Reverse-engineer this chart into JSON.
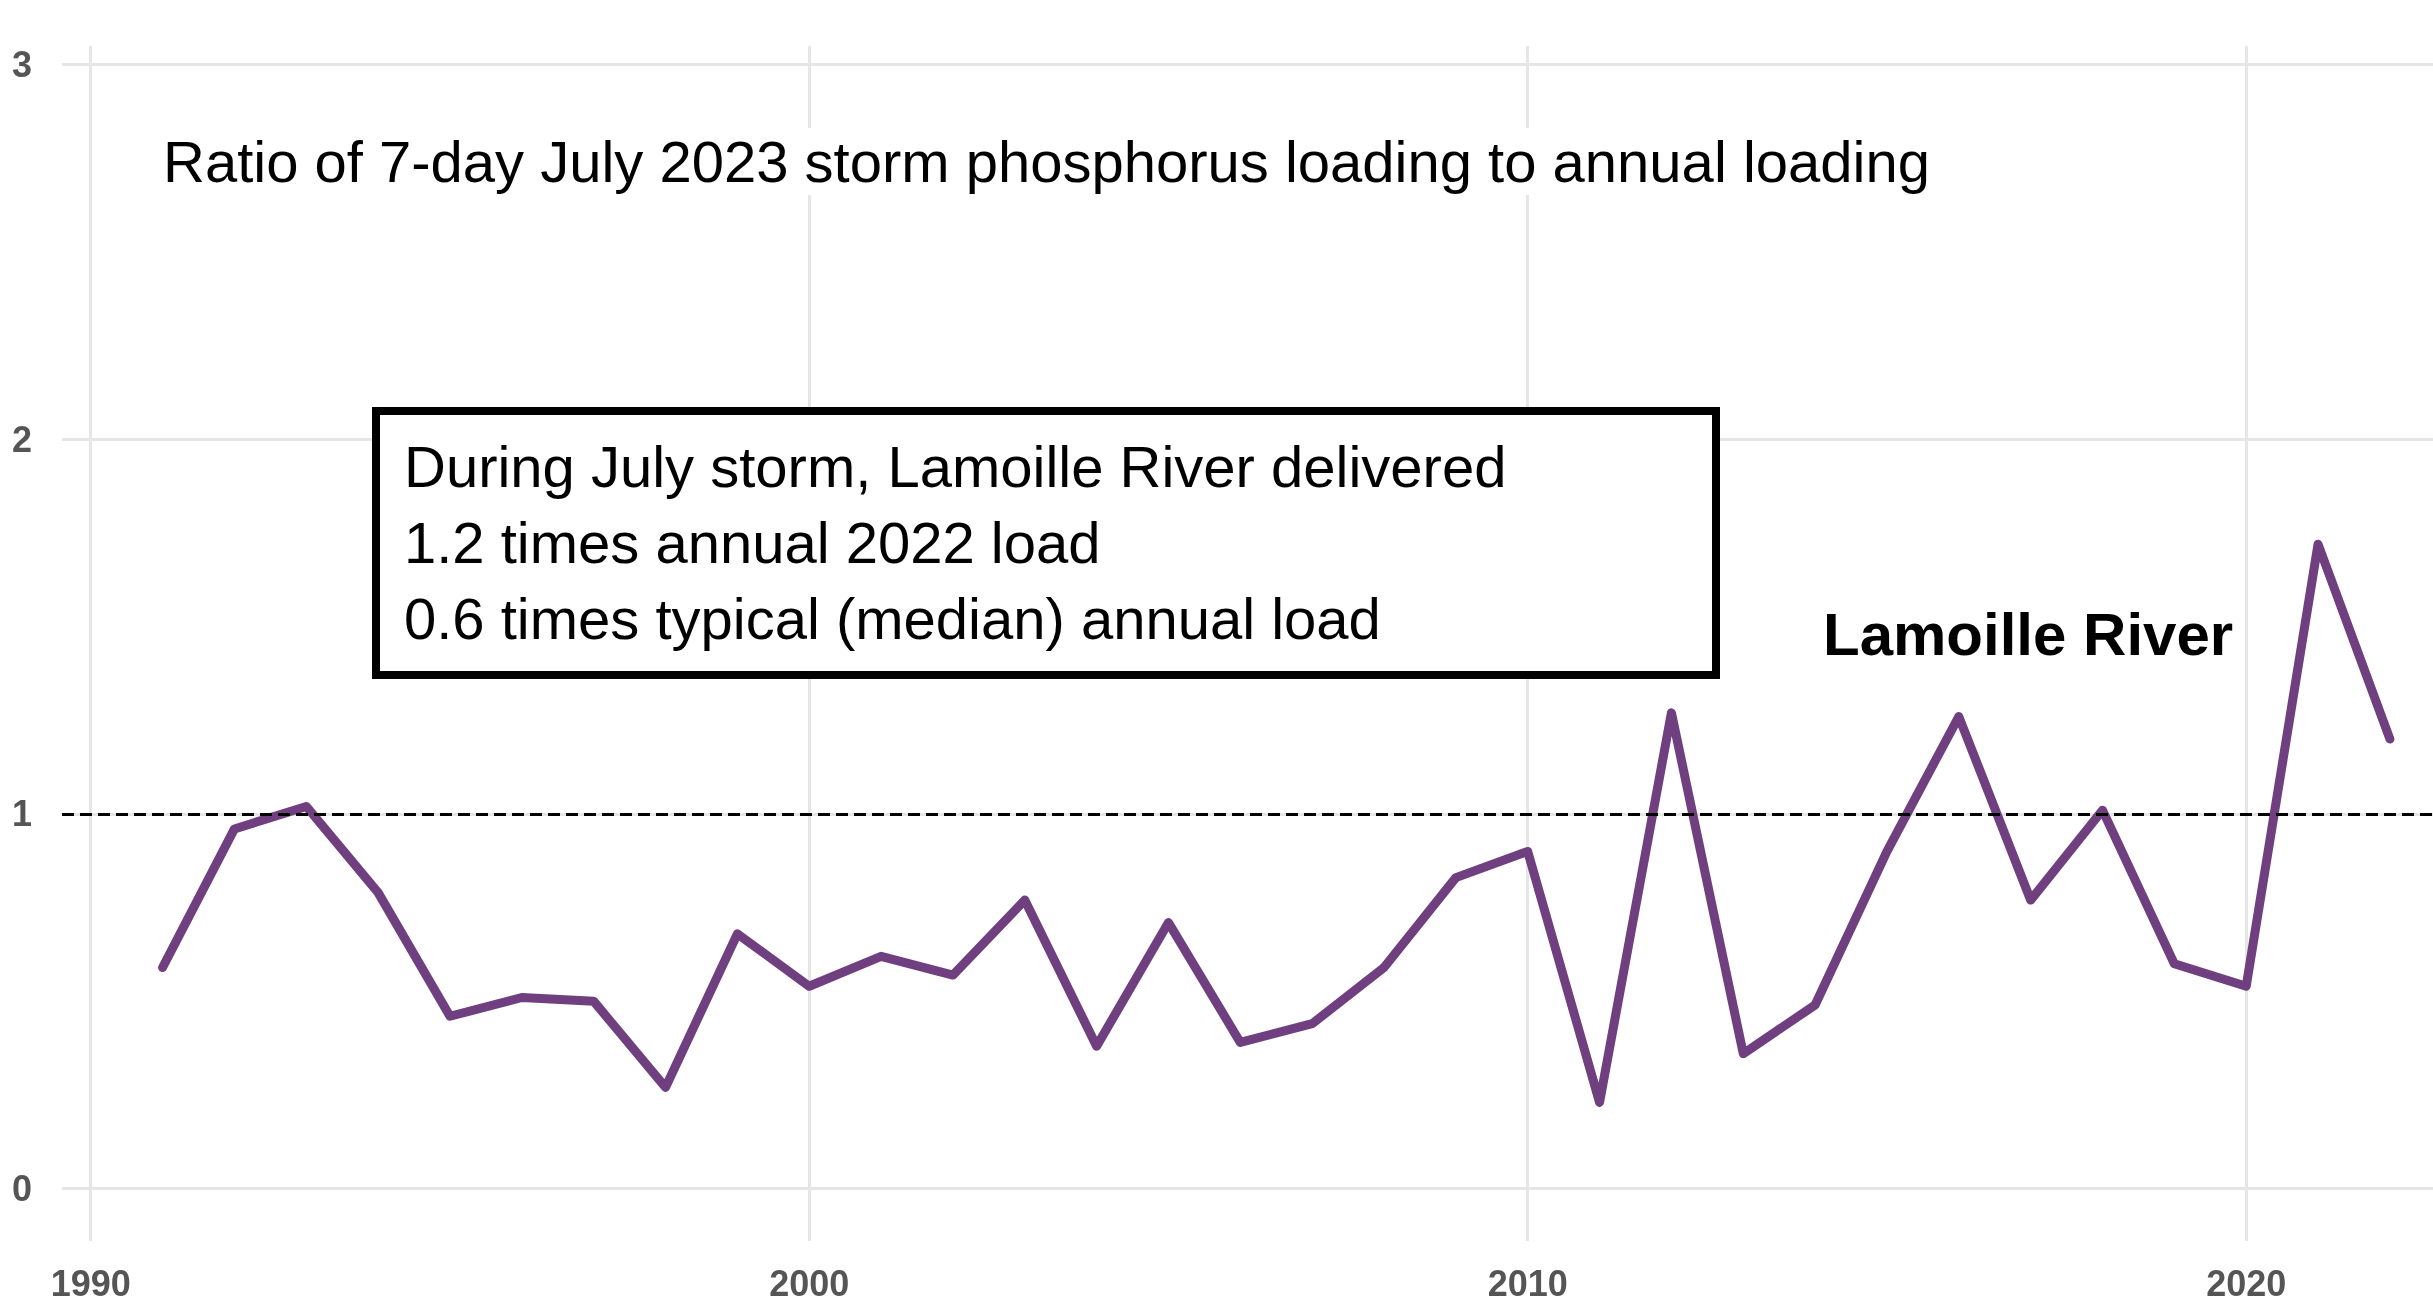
{
  "chart_data": {
    "type": "line",
    "title": "Ratio of 7-day July 2023 storm phosphorus loading to annual loading",
    "annotations": [
      "During July storm, Lamoille River delivered",
      "1.2 times annual 2022 load",
      "0.6 times typical (median) annual load"
    ],
    "x": [
      1991,
      1992,
      1993,
      1994,
      1995,
      1996,
      1997,
      1998,
      1999,
      2000,
      2001,
      2002,
      2003,
      2004,
      2005,
      2006,
      2007,
      2008,
      2009,
      2010,
      2011,
      2012,
      2013,
      2014,
      2015,
      2016,
      2017,
      2018,
      2019,
      2020,
      2021,
      2022
    ],
    "series": [
      {
        "name": "Lamoille River",
        "color": "#6f3f7f",
        "values": [
          0.59,
          0.96,
          1.02,
          0.79,
          0.46,
          0.51,
          0.5,
          0.27,
          0.68,
          0.54,
          0.62,
          0.57,
          0.77,
          0.38,
          0.71,
          0.39,
          0.44,
          0.59,
          0.83,
          0.9,
          0.23,
          1.27,
          0.36,
          0.49,
          0.9,
          1.26,
          0.77,
          1.01,
          0.6,
          0.54,
          1.72,
          1.2
        ]
      }
    ],
    "xlim": [
      1989.6,
      2022.6
    ],
    "xticks": [
      1990,
      2000,
      2010,
      2020
    ],
    "ylim": [
      -0.14,
      3.05
    ],
    "yticks": [
      0,
      1,
      2,
      3
    ],
    "ref_lines": [
      {
        "axis": "y",
        "value": 1,
        "color": "#000000",
        "line_style": "dashed"
      }
    ],
    "grid": true,
    "legend": false,
    "marker": "none",
    "line_style": "solid"
  }
}
